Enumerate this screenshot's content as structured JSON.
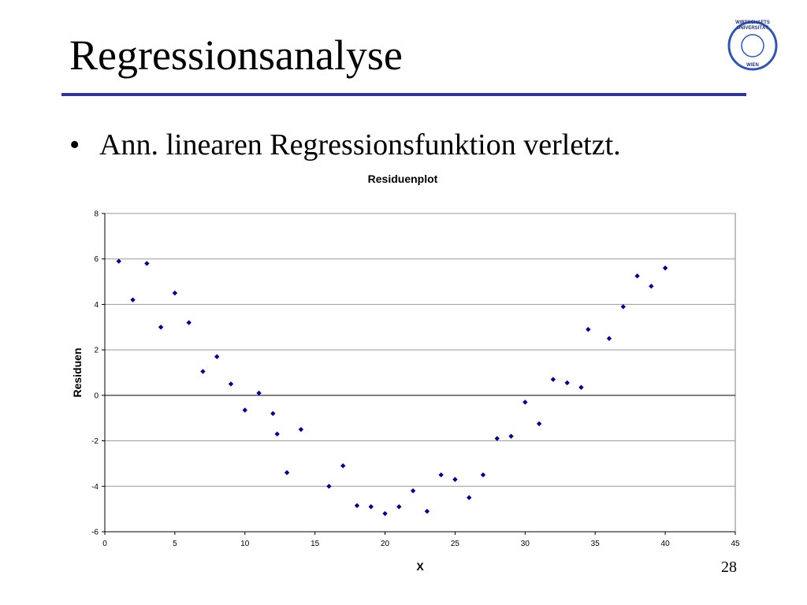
{
  "slide": {
    "title": "Regressionsanalyse",
    "bullet": "Ann. linearen Regressionsfunktion verletzt.",
    "page_number": "28",
    "logo": {
      "top": "WIRTSCHAFTS",
      "middle": "UNIVERSITÄT",
      "bottom": "WIEN"
    }
  },
  "chart_data": {
    "type": "scatter",
    "title": "Residuenplot",
    "xlabel": "X",
    "ylabel": "Residuen",
    "x": [
      1,
      2,
      3,
      4,
      5,
      6,
      7,
      8,
      9,
      10,
      11,
      12,
      12.3,
      13,
      14,
      16,
      17,
      18,
      19,
      20,
      21,
      22,
      23,
      24,
      25,
      26,
      27,
      28,
      29,
      30,
      31,
      32,
      33,
      34,
      34.5,
      36,
      37,
      38,
      39,
      40
    ],
    "values": [
      5.9,
      4.2,
      5.8,
      3.0,
      4.5,
      3.2,
      1.05,
      1.7,
      0.5,
      -0.65,
      0.1,
      -0.8,
      -1.7,
      -3.4,
      -1.5,
      -4.0,
      -3.1,
      -4.85,
      -4.9,
      -5.2,
      -4.9,
      -4.2,
      -5.1,
      -3.5,
      -3.7,
      -4.5,
      -3.5,
      -1.9,
      -1.8,
      -0.3,
      -1.25,
      0.7,
      0.55,
      0.35,
      2.9,
      2.5,
      3.9,
      5.25,
      4.8,
      5.6
    ],
    "color": "#000080",
    "xlim": [
      0,
      45
    ],
    "xticks": [
      0,
      5,
      10,
      15,
      20,
      25,
      30,
      35,
      40,
      45
    ],
    "ylim": [
      -6,
      8
    ],
    "yticks": [
      -6,
      -4,
      -2,
      0,
      2,
      4,
      6,
      8
    ],
    "grid": true
  }
}
